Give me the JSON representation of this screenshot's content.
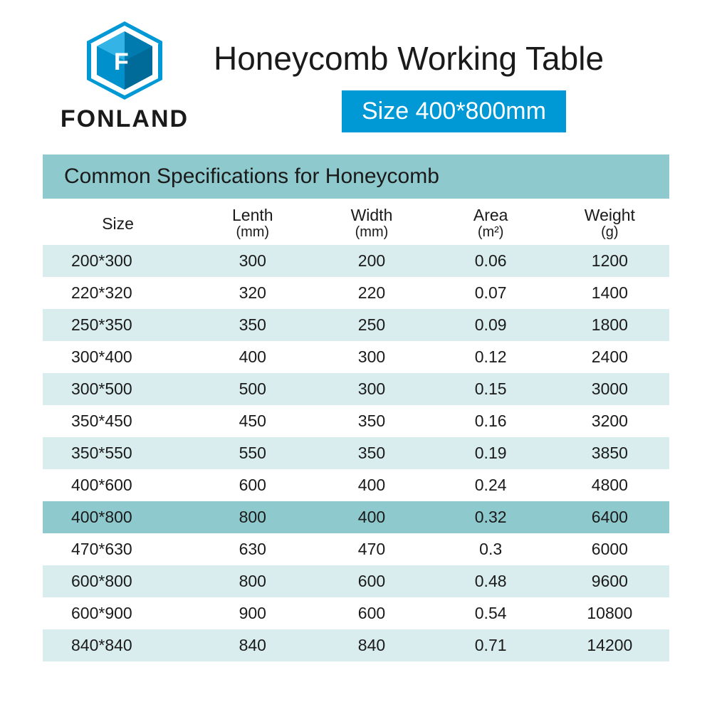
{
  "brand": "FONLAND",
  "logo_color": "#0099d6",
  "title": "Honeycomb Working Table",
  "size_badge": "Size 400*800mm",
  "table_title": "Common Specifications for Honeycomb",
  "colors": {
    "accent_blue": "#0099d6",
    "teal_header": "#8ec9cd",
    "stripe": "#d9edef",
    "highlight": "#8ec9cd",
    "text": "#1a1a1a",
    "bg": "#ffffff"
  },
  "columns": [
    {
      "label": "Size",
      "unit": ""
    },
    {
      "label": "Lenth",
      "unit": "(mm)"
    },
    {
      "label": "Width",
      "unit": "(mm)"
    },
    {
      "label": "Area",
      "unit": "(m²)"
    },
    {
      "label": "Weight",
      "unit": "(g)"
    }
  ],
  "highlight_index": 8,
  "rows": [
    {
      "size": "200*300",
      "length": "300",
      "width": "200",
      "area": "0.06",
      "weight": "1200"
    },
    {
      "size": "220*320",
      "length": "320",
      "width": "220",
      "area": "0.07",
      "weight": "1400"
    },
    {
      "size": "250*350",
      "length": "350",
      "width": "250",
      "area": "0.09",
      "weight": "1800"
    },
    {
      "size": "300*400",
      "length": "400",
      "width": "300",
      "area": "0.12",
      "weight": "2400"
    },
    {
      "size": "300*500",
      "length": "500",
      "width": "300",
      "area": "0.15",
      "weight": "3000"
    },
    {
      "size": "350*450",
      "length": "450",
      "width": "350",
      "area": "0.16",
      "weight": "3200"
    },
    {
      "size": "350*550",
      "length": "550",
      "width": "350",
      "area": "0.19",
      "weight": "3850"
    },
    {
      "size": "400*600",
      "length": "600",
      "width": "400",
      "area": "0.24",
      "weight": "4800"
    },
    {
      "size": "400*800",
      "length": "800",
      "width": "400",
      "area": "0.32",
      "weight": "6400"
    },
    {
      "size": "470*630",
      "length": "630",
      "width": "470",
      "area": "0.3",
      "weight": "6000"
    },
    {
      "size": "600*800",
      "length": "800",
      "width": "600",
      "area": "0.48",
      "weight": "9600"
    },
    {
      "size": "600*900",
      "length": "900",
      "width": "600",
      "area": "0.54",
      "weight": "10800"
    },
    {
      "size": "840*840",
      "length": "840",
      "width": "840",
      "area": "0.71",
      "weight": "14200"
    }
  ]
}
